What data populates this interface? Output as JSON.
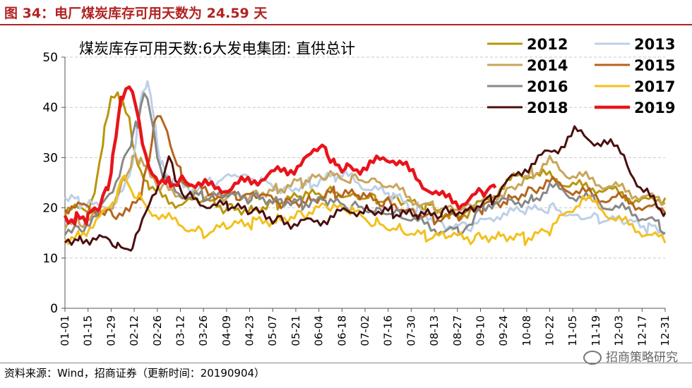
{
  "figure": {
    "title": "图 34：电厂煤炭库存可用天数为 24.59 天",
    "source": "资料来源：Wind，招商证券（更新时间：20190904）",
    "watermark": "招商策略研究"
  },
  "chart_data": {
    "type": "line",
    "title": "煤炭库存可用天数:6大发电集团: 直供总计",
    "xlabel": "",
    "ylabel": "",
    "ylim": [
      0,
      50
    ],
    "yticks": [
      0,
      10,
      20,
      30,
      40,
      50
    ],
    "grid": "horizontal dashed",
    "legend_position": "top-right",
    "x_ticks": [
      "01-01",
      "01-15",
      "01-29",
      "02-12",
      "02-26",
      "03-12",
      "03-26",
      "04-09",
      "04-23",
      "05-07",
      "05-21",
      "06-04",
      "06-18",
      "07-02",
      "07-16",
      "07-30",
      "08-13",
      "08-27",
      "09-10",
      "09-24",
      "10-08",
      "10-22",
      "11-05",
      "11-19",
      "12-03",
      "12-17",
      "12-31"
    ],
    "x_day_range": [
      1,
      365
    ],
    "series": [
      {
        "name": "2012",
        "color": "#b8960b",
        "width": 3,
        "points": [
          [
            1,
            19
          ],
          [
            15,
            20
          ],
          [
            20,
            25
          ],
          [
            25,
            35
          ],
          [
            29,
            41
          ],
          [
            33,
            43
          ],
          [
            36,
            40
          ],
          [
            40,
            37
          ],
          [
            43,
            31
          ],
          [
            47,
            26
          ],
          [
            52,
            24
          ],
          [
            60,
            22
          ],
          [
            70,
            21
          ],
          [
            85,
            21
          ],
          [
            100,
            20
          ],
          [
            115,
            20
          ],
          [
            130,
            21
          ],
          [
            145,
            22
          ],
          [
            160,
            23
          ],
          [
            175,
            23
          ],
          [
            190,
            22
          ],
          [
            205,
            21
          ],
          [
            220,
            20
          ],
          [
            235,
            19
          ],
          [
            245,
            19
          ],
          [
            255,
            21
          ],
          [
            265,
            24
          ],
          [
            275,
            26
          ],
          [
            285,
            27
          ],
          [
            295,
            26
          ],
          [
            305,
            25
          ],
          [
            315,
            24
          ],
          [
            325,
            24
          ],
          [
            335,
            23
          ],
          [
            345,
            22
          ],
          [
            355,
            21
          ],
          [
            365,
            22
          ]
        ]
      },
      {
        "name": "2013",
        "color": "#bcd0e6",
        "width": 3,
        "points": [
          [
            1,
            22
          ],
          [
            10,
            21
          ],
          [
            20,
            20
          ],
          [
            30,
            21
          ],
          [
            38,
            24
          ],
          [
            42,
            28
          ],
          [
            45,
            36
          ],
          [
            48,
            44
          ],
          [
            51,
            45
          ],
          [
            54,
            40
          ],
          [
            57,
            33
          ],
          [
            60,
            28
          ],
          [
            65,
            25
          ],
          [
            75,
            24
          ],
          [
            90,
            25
          ],
          [
            105,
            26
          ],
          [
            120,
            25
          ],
          [
            135,
            24
          ],
          [
            150,
            25
          ],
          [
            165,
            26
          ],
          [
            175,
            26
          ],
          [
            185,
            24
          ],
          [
            200,
            22
          ],
          [
            215,
            20
          ],
          [
            230,
            17
          ],
          [
            245,
            16
          ],
          [
            255,
            17
          ],
          [
            265,
            19
          ],
          [
            280,
            19
          ],
          [
            295,
            20
          ],
          [
            310,
            19
          ],
          [
            325,
            18
          ],
          [
            340,
            17
          ],
          [
            355,
            16
          ],
          [
            365,
            15
          ]
        ]
      },
      {
        "name": "2014",
        "color": "#c9a55a",
        "width": 3,
        "points": [
          [
            1,
            17
          ],
          [
            10,
            17
          ],
          [
            20,
            18
          ],
          [
            30,
            21
          ],
          [
            37,
            26
          ],
          [
            42,
            30
          ],
          [
            47,
            29
          ],
          [
            53,
            26
          ],
          [
            60,
            24
          ],
          [
            70,
            23
          ],
          [
            85,
            22
          ],
          [
            100,
            22
          ],
          [
            115,
            23
          ],
          [
            130,
            24
          ],
          [
            145,
            25
          ],
          [
            160,
            26
          ],
          [
            175,
            26
          ],
          [
            190,
            26
          ],
          [
            200,
            24
          ],
          [
            210,
            22
          ],
          [
            225,
            20
          ],
          [
            240,
            19
          ],
          [
            255,
            21
          ],
          [
            270,
            24
          ],
          [
            285,
            27
          ],
          [
            295,
            29
          ],
          [
            305,
            27
          ],
          [
            315,
            26
          ],
          [
            325,
            25
          ],
          [
            335,
            24
          ],
          [
            345,
            23
          ],
          [
            355,
            22
          ],
          [
            365,
            21
          ]
        ]
      },
      {
        "name": "2015",
        "color": "#b5651d",
        "width": 3,
        "points": [
          [
            1,
            20
          ],
          [
            15,
            20
          ],
          [
            30,
            19
          ],
          [
            40,
            19
          ],
          [
            47,
            22
          ],
          [
            52,
            30
          ],
          [
            55,
            37
          ],
          [
            59,
            39
          ],
          [
            63,
            36
          ],
          [
            67,
            30
          ],
          [
            72,
            26
          ],
          [
            78,
            24
          ],
          [
            90,
            23
          ],
          [
            105,
            22
          ],
          [
            120,
            22
          ],
          [
            135,
            21
          ],
          [
            150,
            22
          ],
          [
            165,
            23
          ],
          [
            180,
            22
          ],
          [
            195,
            21
          ],
          [
            210,
            20
          ],
          [
            225,
            18
          ],
          [
            240,
            18
          ],
          [
            255,
            20
          ],
          [
            270,
            22
          ],
          [
            285,
            24
          ],
          [
            295,
            25
          ],
          [
            305,
            24
          ],
          [
            315,
            23
          ],
          [
            325,
            22
          ],
          [
            335,
            22
          ],
          [
            345,
            21
          ],
          [
            355,
            20
          ],
          [
            365,
            19
          ]
        ]
      },
      {
        "name": "2016",
        "color": "#888888",
        "width": 3,
        "points": [
          [
            1,
            16
          ],
          [
            10,
            16
          ],
          [
            20,
            18
          ],
          [
            30,
            24
          ],
          [
            37,
            30
          ],
          [
            42,
            34
          ],
          [
            45,
            37
          ],
          [
            49,
            43
          ],
          [
            53,
            38
          ],
          [
            57,
            30
          ],
          [
            62,
            25
          ],
          [
            70,
            23
          ],
          [
            85,
            22
          ],
          [
            100,
            22
          ],
          [
            115,
            22
          ],
          [
            130,
            22
          ],
          [
            145,
            21
          ],
          [
            160,
            21
          ],
          [
            175,
            20
          ],
          [
            190,
            20
          ],
          [
            205,
            19
          ],
          [
            215,
            17
          ],
          [
            225,
            16
          ],
          [
            240,
            15
          ],
          [
            248,
            16
          ],
          [
            252,
            20
          ],
          [
            258,
            21
          ],
          [
            270,
            21
          ],
          [
            285,
            22
          ],
          [
            295,
            24
          ],
          [
            305,
            23
          ],
          [
            315,
            22
          ],
          [
            325,
            21
          ],
          [
            335,
            20
          ],
          [
            345,
            19
          ],
          [
            355,
            18
          ],
          [
            362,
            16
          ],
          [
            365,
            15
          ]
        ]
      },
      {
        "name": "2017",
        "color": "#f2c01c",
        "width": 3,
        "points": [
          [
            1,
            14
          ],
          [
            10,
            15
          ],
          [
            20,
            17
          ],
          [
            28,
            20
          ],
          [
            33,
            23
          ],
          [
            37,
            26
          ],
          [
            41,
            24
          ],
          [
            46,
            22
          ],
          [
            52,
            20
          ],
          [
            60,
            18
          ],
          [
            70,
            17
          ],
          [
            85,
            15
          ],
          [
            100,
            16
          ],
          [
            115,
            17
          ],
          [
            130,
            18
          ],
          [
            145,
            19
          ],
          [
            160,
            20
          ],
          [
            175,
            19
          ],
          [
            190,
            17
          ],
          [
            205,
            16
          ],
          [
            220,
            14
          ],
          [
            235,
            14
          ],
          [
            250,
            14
          ],
          [
            265,
            15
          ],
          [
            280,
            14
          ],
          [
            295,
            15
          ],
          [
            305,
            19
          ],
          [
            315,
            22
          ],
          [
            325,
            20
          ],
          [
            335,
            18
          ],
          [
            345,
            16
          ],
          [
            355,
            15
          ],
          [
            365,
            13
          ]
        ]
      },
      {
        "name": "2018",
        "color": "#4b0f0f",
        "width": 3,
        "points": [
          [
            1,
            14
          ],
          [
            10,
            14
          ],
          [
            20,
            14
          ],
          [
            28,
            13
          ],
          [
            33,
            12
          ],
          [
            37,
            11
          ],
          [
            42,
            12
          ],
          [
            46,
            15
          ],
          [
            50,
            19
          ],
          [
            54,
            23
          ],
          [
            58,
            25
          ],
          [
            62,
            27
          ],
          [
            64,
            30
          ],
          [
            68,
            25
          ],
          [
            75,
            22
          ],
          [
            85,
            21
          ],
          [
            100,
            20
          ],
          [
            115,
            19
          ],
          [
            130,
            18
          ],
          [
            140,
            17
          ],
          [
            150,
            17
          ],
          [
            160,
            18
          ],
          [
            170,
            19
          ],
          [
            185,
            20
          ],
          [
            200,
            19
          ],
          [
            215,
            18
          ],
          [
            230,
            19
          ],
          [
            245,
            20
          ],
          [
            260,
            22
          ],
          [
            270,
            25
          ],
          [
            280,
            28
          ],
          [
            290,
            30
          ],
          [
            300,
            32
          ],
          [
            310,
            35
          ],
          [
            318,
            34
          ],
          [
            326,
            33
          ],
          [
            334,
            32
          ],
          [
            340,
            31
          ],
          [
            346,
            26
          ],
          [
            350,
            23
          ],
          [
            358,
            22
          ],
          [
            365,
            19
          ]
        ]
      },
      {
        "name": "2019",
        "color": "#e8141b",
        "width": 4.5,
        "points": [
          [
            1,
            18
          ],
          [
            8,
            18
          ],
          [
            15,
            18
          ],
          [
            22,
            20
          ],
          [
            27,
            24
          ],
          [
            30,
            30
          ],
          [
            33,
            37
          ],
          [
            36,
            43
          ],
          [
            40,
            45
          ],
          [
            44,
            40
          ],
          [
            48,
            32
          ],
          [
            52,
            28
          ],
          [
            58,
            26
          ],
          [
            65,
            25
          ],
          [
            72,
            26
          ],
          [
            80,
            25
          ],
          [
            90,
            24
          ],
          [
            100,
            24
          ],
          [
            110,
            25
          ],
          [
            120,
            26
          ],
          [
            130,
            27
          ],
          [
            140,
            28
          ],
          [
            150,
            30
          ],
          [
            155,
            32
          ],
          [
            160,
            31
          ],
          [
            165,
            29
          ],
          [
            172,
            28
          ],
          [
            180,
            28
          ],
          [
            190,
            29
          ],
          [
            200,
            30
          ],
          [
            206,
            29
          ],
          [
            210,
            27
          ],
          [
            216,
            25
          ],
          [
            222,
            24
          ],
          [
            230,
            22
          ],
          [
            240,
            21
          ],
          [
            248,
            22
          ],
          [
            255,
            23
          ],
          [
            262,
            24
          ]
        ]
      }
    ]
  }
}
